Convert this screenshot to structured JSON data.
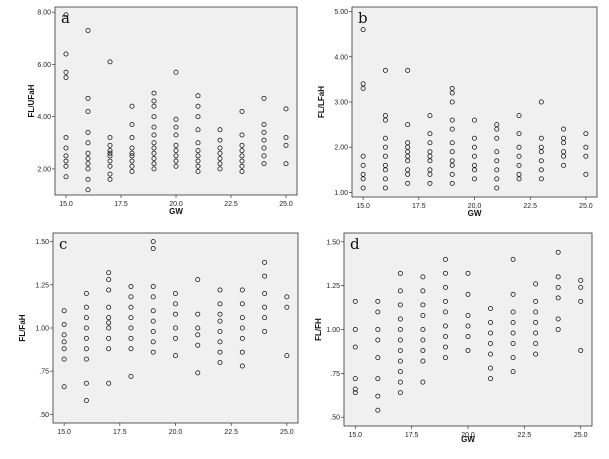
{
  "chart_data": [
    {
      "type": "scatter",
      "panel": "a",
      "xlabel": "GW",
      "ylabel": "FL/UFaH",
      "xlim": [
        14.5,
        25.5
      ],
      "ylim": [
        1.0,
        8.2
      ],
      "xticks": [
        "15.0",
        "17.5",
        "20.0",
        "22.5",
        "25.0"
      ],
      "yticks": [
        "2.00",
        "4.00",
        "6.00",
        "8.00"
      ],
      "points": [
        [
          15,
          1.7
        ],
        [
          15,
          2.1
        ],
        [
          15,
          2.3
        ],
        [
          15,
          2.5
        ],
        [
          15,
          2.8
        ],
        [
          15,
          3.2
        ],
        [
          15,
          5.5
        ],
        [
          15,
          5.7
        ],
        [
          15,
          6.4
        ],
        [
          15,
          7.9
        ],
        [
          16,
          1.2
        ],
        [
          16,
          1.6
        ],
        [
          16,
          2.0
        ],
        [
          16,
          2.2
        ],
        [
          16,
          2.4
        ],
        [
          16,
          2.6
        ],
        [
          16,
          3.0
        ],
        [
          16,
          3.4
        ],
        [
          16,
          4.2
        ],
        [
          16,
          4.7
        ],
        [
          16,
          7.3
        ],
        [
          17,
          1.6
        ],
        [
          17,
          1.8
        ],
        [
          17,
          2.1
        ],
        [
          17,
          2.3
        ],
        [
          17,
          2.5
        ],
        [
          17,
          2.6
        ],
        [
          17,
          2.7
        ],
        [
          17,
          2.9
        ],
        [
          17,
          3.2
        ],
        [
          17,
          6.1
        ],
        [
          18,
          1.9
        ],
        [
          18,
          2.1
        ],
        [
          18,
          2.3
        ],
        [
          18,
          2.5
        ],
        [
          18,
          2.6
        ],
        [
          18,
          2.8
        ],
        [
          18,
          3.2
        ],
        [
          18,
          3.7
        ],
        [
          18,
          4.4
        ],
        [
          19,
          2.0
        ],
        [
          19,
          2.2
        ],
        [
          19,
          2.4
        ],
        [
          19,
          2.6
        ],
        [
          19,
          2.8
        ],
        [
          19,
          3.0
        ],
        [
          19,
          3.3
        ],
        [
          19,
          3.6
        ],
        [
          19,
          4.0
        ],
        [
          19,
          4.4
        ],
        [
          19,
          4.6
        ],
        [
          19,
          4.9
        ],
        [
          20,
          2.1
        ],
        [
          20,
          2.3
        ],
        [
          20,
          2.5
        ],
        [
          20,
          2.7
        ],
        [
          20,
          2.9
        ],
        [
          20,
          3.3
        ],
        [
          20,
          3.6
        ],
        [
          20,
          3.9
        ],
        [
          20,
          5.7
        ],
        [
          21,
          1.9
        ],
        [
          21,
          2.1
        ],
        [
          21,
          2.3
        ],
        [
          21,
          2.5
        ],
        [
          21,
          2.7
        ],
        [
          21,
          3.0
        ],
        [
          21,
          3.5
        ],
        [
          21,
          4.0
        ],
        [
          21,
          4.4
        ],
        [
          21,
          4.8
        ],
        [
          22,
          2.0
        ],
        [
          22,
          2.2
        ],
        [
          22,
          2.4
        ],
        [
          22,
          2.6
        ],
        [
          22,
          2.8
        ],
        [
          22,
          3.1
        ],
        [
          22,
          3.5
        ],
        [
          23,
          1.9
        ],
        [
          23,
          2.1
        ],
        [
          23,
          2.3
        ],
        [
          23,
          2.5
        ],
        [
          23,
          2.7
        ],
        [
          23,
          2.9
        ],
        [
          23,
          3.3
        ],
        [
          23,
          4.2
        ],
        [
          24,
          2.2
        ],
        [
          24,
          2.5
        ],
        [
          24,
          2.8
        ],
        [
          24,
          3.1
        ],
        [
          24,
          3.4
        ],
        [
          24,
          3.7
        ],
        [
          24,
          4.7
        ],
        [
          25,
          2.2
        ],
        [
          25,
          2.9
        ],
        [
          25,
          3.2
        ],
        [
          25,
          4.3
        ]
      ]
    },
    {
      "type": "scatter",
      "panel": "b",
      "xlabel": "GW",
      "ylabel": "FL/LFaH",
      "xlim": [
        14.5,
        25.5
      ],
      "ylim": [
        0.9,
        5.1
      ],
      "xticks": [
        "15.0",
        "17.5",
        "20.0",
        "22.5",
        "25.0"
      ],
      "yticks": [
        "1.00",
        "2.00",
        "3.00",
        "4.00",
        "5.00"
      ],
      "points": [
        [
          15,
          1.1
        ],
        [
          15,
          1.3
        ],
        [
          15,
          1.4
        ],
        [
          15,
          1.6
        ],
        [
          15,
          1.8
        ],
        [
          15,
          3.3
        ],
        [
          15,
          3.4
        ],
        [
          15,
          4.6
        ],
        [
          16,
          1.1
        ],
        [
          16,
          1.3
        ],
        [
          16,
          1.5
        ],
        [
          16,
          1.6
        ],
        [
          16,
          1.8
        ],
        [
          16,
          2.0
        ],
        [
          16,
          2.2
        ],
        [
          16,
          2.6
        ],
        [
          16,
          2.7
        ],
        [
          16,
          3.7
        ],
        [
          17,
          1.2
        ],
        [
          17,
          1.4
        ],
        [
          17,
          1.5
        ],
        [
          17,
          1.7
        ],
        [
          17,
          1.8
        ],
        [
          17,
          1.9
        ],
        [
          17,
          2.0
        ],
        [
          17,
          2.1
        ],
        [
          17,
          2.5
        ],
        [
          17,
          3.7
        ],
        [
          18,
          1.2
        ],
        [
          18,
          1.4
        ],
        [
          18,
          1.5
        ],
        [
          18,
          1.7
        ],
        [
          18,
          1.8
        ],
        [
          18,
          1.9
        ],
        [
          18,
          2.1
        ],
        [
          18,
          2.3
        ],
        [
          18,
          2.7
        ],
        [
          19,
          1.2
        ],
        [
          19,
          1.4
        ],
        [
          19,
          1.6
        ],
        [
          19,
          1.7
        ],
        [
          19,
          1.9
        ],
        [
          19,
          2.1
        ],
        [
          19,
          2.4
        ],
        [
          19,
          2.6
        ],
        [
          19,
          3.0
        ],
        [
          19,
          3.2
        ],
        [
          19,
          3.3
        ],
        [
          20,
          1.3
        ],
        [
          20,
          1.5
        ],
        [
          20,
          1.6
        ],
        [
          20,
          1.8
        ],
        [
          20,
          2.0
        ],
        [
          20,
          2.2
        ],
        [
          20,
          2.6
        ],
        [
          21,
          1.1
        ],
        [
          21,
          1.3
        ],
        [
          21,
          1.5
        ],
        [
          21,
          1.7
        ],
        [
          21,
          1.9
        ],
        [
          21,
          2.2
        ],
        [
          21,
          2.4
        ],
        [
          21,
          2.5
        ],
        [
          22,
          1.3
        ],
        [
          22,
          1.4
        ],
        [
          22,
          1.6
        ],
        [
          22,
          1.8
        ],
        [
          22,
          2.0
        ],
        [
          22,
          2.3
        ],
        [
          22,
          2.7
        ],
        [
          23,
          1.3
        ],
        [
          23,
          1.5
        ],
        [
          23,
          1.7
        ],
        [
          23,
          1.9
        ],
        [
          23,
          2.0
        ],
        [
          23,
          2.2
        ],
        [
          23,
          3.0
        ],
        [
          24,
          1.6
        ],
        [
          24,
          1.8
        ],
        [
          24,
          1.9
        ],
        [
          24,
          2.1
        ],
        [
          24,
          2.2
        ],
        [
          24,
          2.4
        ],
        [
          25,
          1.4
        ],
        [
          25,
          1.8
        ],
        [
          25,
          2.0
        ],
        [
          25,
          2.3
        ]
      ]
    },
    {
      "type": "scatter",
      "panel": "c",
      "xlabel": "",
      "ylabel": "FL/FaH",
      "xlim": [
        14.5,
        25.5
      ],
      "ylim": [
        0.45,
        1.55
      ],
      "xticks": [
        "15.0",
        "17.5",
        "20.0",
        "22.5",
        "25.0"
      ],
      "yticks": [
        ".50",
        ".75",
        "1.00",
        "1.25",
        "1.50"
      ],
      "points": [
        [
          15,
          0.66
        ],
        [
          15,
          0.82
        ],
        [
          15,
          0.88
        ],
        [
          15,
          0.92
        ],
        [
          15,
          0.96
        ],
        [
          15,
          1.02
        ],
        [
          15,
          1.1
        ],
        [
          16,
          0.58
        ],
        [
          16,
          0.68
        ],
        [
          16,
          0.82
        ],
        [
          16,
          0.88
        ],
        [
          16,
          0.94
        ],
        [
          16,
          1.0
        ],
        [
          16,
          1.06
        ],
        [
          16,
          1.12
        ],
        [
          16,
          1.2
        ],
        [
          17,
          0.68
        ],
        [
          17,
          0.88
        ],
        [
          17,
          0.94
        ],
        [
          17,
          1.0
        ],
        [
          17,
          1.03
        ],
        [
          17,
          1.06
        ],
        [
          17,
          1.12
        ],
        [
          17,
          1.22
        ],
        [
          17,
          1.28
        ],
        [
          17,
          1.32
        ],
        [
          18,
          0.72
        ],
        [
          18,
          0.88
        ],
        [
          18,
          0.94
        ],
        [
          18,
          1.0
        ],
        [
          18,
          1.06
        ],
        [
          18,
          1.12
        ],
        [
          18,
          1.18
        ],
        [
          18,
          1.24
        ],
        [
          19,
          0.86
        ],
        [
          19,
          0.92
        ],
        [
          19,
          0.98
        ],
        [
          19,
          1.04
        ],
        [
          19,
          1.1
        ],
        [
          19,
          1.18
        ],
        [
          19,
          1.24
        ],
        [
          19,
          1.46
        ],
        [
          19,
          1.5
        ],
        [
          20,
          0.84
        ],
        [
          20,
          0.94
        ],
        [
          20,
          1.0
        ],
        [
          20,
          1.08
        ],
        [
          20,
          1.14
        ],
        [
          20,
          1.2
        ],
        [
          21,
          0.74
        ],
        [
          21,
          0.9
        ],
        [
          21,
          0.96
        ],
        [
          21,
          1.0
        ],
        [
          21,
          1.08
        ],
        [
          21,
          1.28
        ],
        [
          22,
          0.8
        ],
        [
          22,
          0.86
        ],
        [
          22,
          0.92
        ],
        [
          22,
          0.98
        ],
        [
          22,
          1.04
        ],
        [
          22,
          1.08
        ],
        [
          22,
          1.14
        ],
        [
          22,
          1.22
        ],
        [
          23,
          0.78
        ],
        [
          23,
          0.86
        ],
        [
          23,
          0.94
        ],
        [
          23,
          1.0
        ],
        [
          23,
          1.06
        ],
        [
          23,
          1.14
        ],
        [
          23,
          1.22
        ],
        [
          24,
          0.98
        ],
        [
          24,
          1.06
        ],
        [
          24,
          1.12
        ],
        [
          24,
          1.2
        ],
        [
          24,
          1.3
        ],
        [
          24,
          1.38
        ],
        [
          25,
          0.84
        ],
        [
          25,
          1.12
        ],
        [
          25,
          1.18
        ]
      ]
    },
    {
      "type": "scatter",
      "panel": "d",
      "xlabel": "GW",
      "ylabel": "FL/FH",
      "xlim": [
        14.5,
        25.5
      ],
      "ylim": [
        0.45,
        1.55
      ],
      "xticks": [
        "15.0",
        "17.5",
        "20.0",
        "22.5",
        "25.0"
      ],
      "yticks": [
        ".50",
        ".75",
        "1.00",
        "1.25",
        "1.50"
      ],
      "points": [
        [
          15,
          0.64
        ],
        [
          15,
          0.66
        ],
        [
          15,
          0.72
        ],
        [
          15,
          0.9
        ],
        [
          15,
          1.0
        ],
        [
          15,
          1.16
        ],
        [
          16,
          0.54
        ],
        [
          16,
          0.62
        ],
        [
          16,
          0.72
        ],
        [
          16,
          0.84
        ],
        [
          16,
          0.94
        ],
        [
          16,
          1.0
        ],
        [
          16,
          1.1
        ],
        [
          16,
          1.16
        ],
        [
          17,
          0.64
        ],
        [
          17,
          0.7
        ],
        [
          17,
          0.76
        ],
        [
          17,
          0.82
        ],
        [
          17,
          0.88
        ],
        [
          17,
          0.94
        ],
        [
          17,
          1.0
        ],
        [
          17,
          1.06
        ],
        [
          17,
          1.14
        ],
        [
          17,
          1.22
        ],
        [
          17,
          1.32
        ],
        [
          18,
          0.7
        ],
        [
          18,
          0.82
        ],
        [
          18,
          0.88
        ],
        [
          18,
          0.94
        ],
        [
          18,
          1.0
        ],
        [
          18,
          1.08
        ],
        [
          18,
          1.14
        ],
        [
          18,
          1.22
        ],
        [
          18,
          1.3
        ],
        [
          19,
          0.84
        ],
        [
          19,
          0.9
        ],
        [
          19,
          0.96
        ],
        [
          19,
          1.02
        ],
        [
          19,
          1.1
        ],
        [
          19,
          1.16
        ],
        [
          19,
          1.24
        ],
        [
          19,
          1.32
        ],
        [
          19,
          1.4
        ],
        [
          20,
          0.88
        ],
        [
          20,
          0.96
        ],
        [
          20,
          1.02
        ],
        [
          20,
          1.08
        ],
        [
          20,
          1.2
        ],
        [
          20,
          1.32
        ],
        [
          21,
          0.72
        ],
        [
          21,
          0.78
        ],
        [
          21,
          0.86
        ],
        [
          21,
          0.92
        ],
        [
          21,
          0.98
        ],
        [
          21,
          1.04
        ],
        [
          21,
          1.12
        ],
        [
          22,
          0.76
        ],
        [
          22,
          0.84
        ],
        [
          22,
          0.92
        ],
        [
          22,
          0.98
        ],
        [
          22,
          1.04
        ],
        [
          22,
          1.1
        ],
        [
          22,
          1.2
        ],
        [
          22,
          1.4
        ],
        [
          23,
          0.86
        ],
        [
          23,
          0.92
        ],
        [
          23,
          0.98
        ],
        [
          23,
          1.04
        ],
        [
          23,
          1.1
        ],
        [
          23,
          1.16
        ],
        [
          23,
          1.26
        ],
        [
          24,
          1.0
        ],
        [
          24,
          1.06
        ],
        [
          24,
          1.18
        ],
        [
          24,
          1.24
        ],
        [
          24,
          1.3
        ],
        [
          24,
          1.44
        ],
        [
          25,
          0.88
        ],
        [
          25,
          1.16
        ],
        [
          25,
          1.24
        ],
        [
          25,
          1.28
        ]
      ]
    }
  ]
}
